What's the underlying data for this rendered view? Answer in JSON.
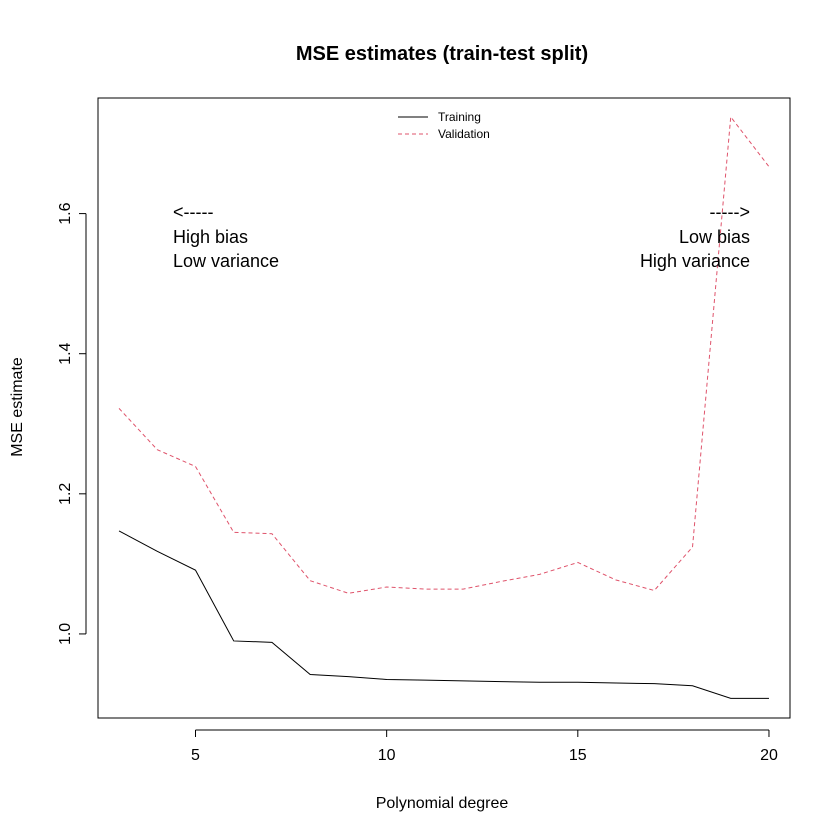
{
  "chart_data": {
    "type": "line",
    "title": "MSE estimates (train-test split)",
    "xlabel": "Polynomial degree",
    "ylabel": "MSE estimate",
    "xlim": [
      2.45,
      20.55
    ],
    "ylim": [
      0.88,
      1.765
    ],
    "x_ticks": [
      5,
      10,
      15,
      20
    ],
    "y_ticks": [
      1.0,
      1.2,
      1.4,
      1.6
    ],
    "x_tick_labels": [
      "5",
      "10",
      "15",
      "20"
    ],
    "y_tick_labels": [
      "1.0",
      "1.2",
      "1.4",
      "1.6"
    ],
    "grid": false,
    "legend_position": "top-center",
    "x": [
      3,
      4,
      5,
      6,
      7,
      8,
      9,
      10,
      11,
      12,
      13,
      14,
      15,
      16,
      17,
      18,
      19,
      20
    ],
    "series": [
      {
        "name": "Training",
        "color": "#000000",
        "dash": "solid",
        "values": [
          1.147,
          1.118,
          1.091,
          0.99,
          0.988,
          0.942,
          0.939,
          0.935,
          0.934,
          0.933,
          0.932,
          0.931,
          0.931,
          0.93,
          0.929,
          0.926,
          0.908,
          0.908
        ]
      },
      {
        "name": "Validation",
        "color": "#DF536B",
        "dash": "dashed",
        "values": [
          1.322,
          1.263,
          1.239,
          1.145,
          1.143,
          1.076,
          1.058,
          1.067,
          1.064,
          1.064,
          1.075,
          1.085,
          1.102,
          1.077,
          1.062,
          1.124,
          1.738,
          1.667
        ]
      }
    ],
    "annotations": {
      "left": {
        "arrow": "<-----",
        "line1": "High bias",
        "line2": "Low variance"
      },
      "right": {
        "arrow": "----->",
        "line1": "Low bias",
        "line2": "High variance"
      }
    }
  }
}
